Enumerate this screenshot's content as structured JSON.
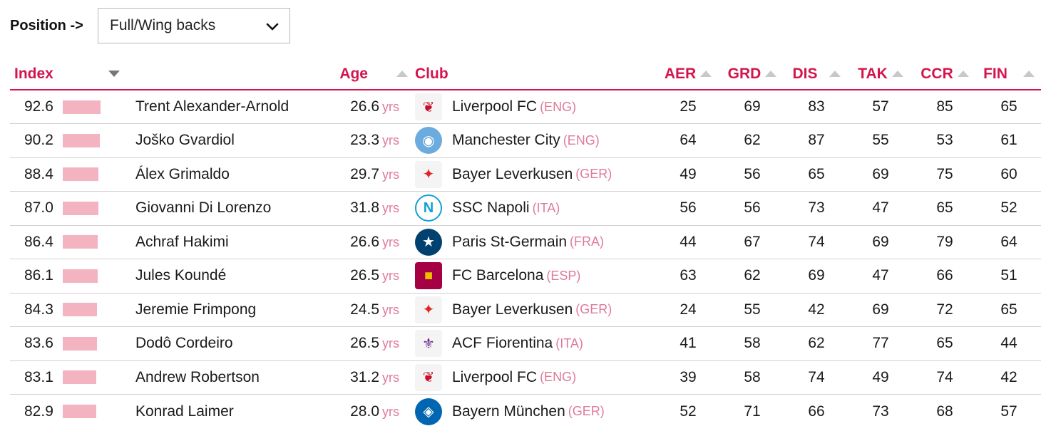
{
  "filter": {
    "label": "Position ->",
    "selected": "Full/Wing backs"
  },
  "columns": {
    "index": "Index",
    "age": "Age",
    "club": "Club",
    "aer": "AER",
    "grd": "GRD",
    "dis": "DIS",
    "tak": "TAK",
    "ccr": "CCR",
    "fin": "FIN"
  },
  "age_unit": "yrs",
  "rows": [
    {
      "index": "92.6",
      "name": "Trent Alexander-Arnold",
      "age": "26.6",
      "club": "Liverpool FC",
      "country": "(ENG)",
      "crest": "liverpool-crest-icon",
      "aer": "25",
      "grd": "69",
      "dis": "83",
      "tak": "57",
      "ccr": "85",
      "fin": "65"
    },
    {
      "index": "90.2",
      "name": "Joško Gvardiol",
      "age": "23.3",
      "club": "Manchester City",
      "country": "(ENG)",
      "crest": "manchester-city-crest-icon",
      "aer": "64",
      "grd": "62",
      "dis": "87",
      "tak": "55",
      "ccr": "53",
      "fin": "61"
    },
    {
      "index": "88.4",
      "name": "Álex Grimaldo",
      "age": "29.7",
      "club": "Bayer Leverkusen",
      "country": "(GER)",
      "crest": "leverkusen-crest-icon",
      "aer": "49",
      "grd": "56",
      "dis": "65",
      "tak": "69",
      "ccr": "75",
      "fin": "60"
    },
    {
      "index": "87.0",
      "name": "Giovanni Di Lorenzo",
      "age": "31.8",
      "club": "SSC Napoli",
      "country": "(ITA)",
      "crest": "napoli-crest-icon",
      "aer": "56",
      "grd": "56",
      "dis": "73",
      "tak": "47",
      "ccr": "65",
      "fin": "52"
    },
    {
      "index": "86.4",
      "name": "Achraf Hakimi",
      "age": "26.6",
      "club": "Paris St-Germain",
      "country": "(FRA)",
      "crest": "psg-crest-icon",
      "aer": "44",
      "grd": "67",
      "dis": "74",
      "tak": "69",
      "ccr": "79",
      "fin": "64"
    },
    {
      "index": "86.1",
      "name": "Jules Koundé",
      "age": "26.5",
      "club": "FC Barcelona",
      "country": "(ESP)",
      "crest": "barcelona-crest-icon",
      "aer": "63",
      "grd": "62",
      "dis": "69",
      "tak": "47",
      "ccr": "66",
      "fin": "51"
    },
    {
      "index": "84.3",
      "name": "Jeremie Frimpong",
      "age": "24.5",
      "club": "Bayer Leverkusen",
      "country": "(GER)",
      "crest": "leverkusen-crest-icon",
      "aer": "24",
      "grd": "55",
      "dis": "42",
      "tak": "69",
      "ccr": "72",
      "fin": "65"
    },
    {
      "index": "83.6",
      "name": "Dodô Cordeiro",
      "age": "26.5",
      "club": "ACF Fiorentina",
      "country": "(ITA)",
      "crest": "fiorentina-crest-icon",
      "aer": "41",
      "grd": "58",
      "dis": "62",
      "tak": "77",
      "ccr": "65",
      "fin": "44"
    },
    {
      "index": "83.1",
      "name": "Andrew Robertson",
      "age": "31.2",
      "club": "Liverpool FC",
      "country": "(ENG)",
      "crest": "liverpool-crest-icon",
      "aer": "39",
      "grd": "58",
      "dis": "74",
      "tak": "49",
      "ccr": "74",
      "fin": "42"
    },
    {
      "index": "82.9",
      "name": "Konrad Laimer",
      "age": "28.0",
      "club": "Bayern München",
      "country": "(GER)",
      "crest": "bayern-crest-icon",
      "aer": "52",
      "grd": "71",
      "dis": "66",
      "tak": "73",
      "ccr": "68",
      "fin": "57"
    }
  ]
}
